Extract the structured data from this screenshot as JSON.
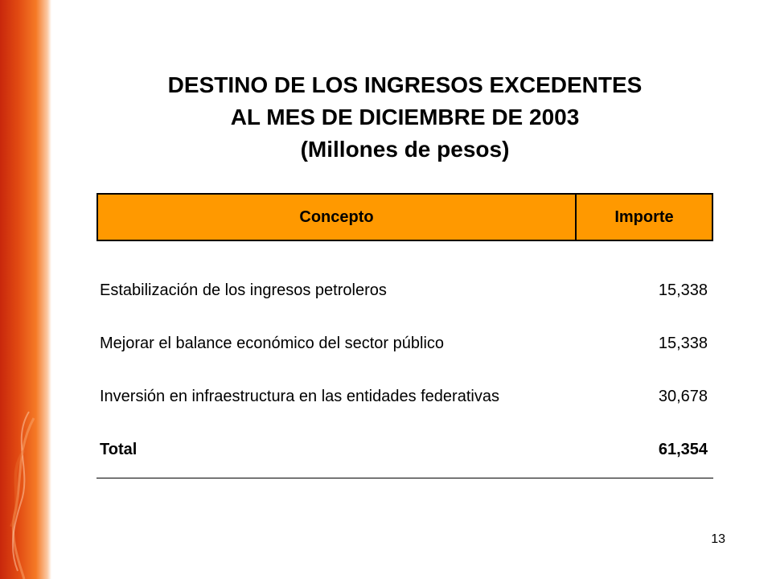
{
  "slide": {
    "title_lines": [
      "DESTINO DE LOS INGRESOS EXCEDENTES",
      "AL MES DE DICIEMBRE DE 2003",
      "(Millones de pesos)"
    ],
    "page_number": "13"
  },
  "table": {
    "header": {
      "concept": "Concepto",
      "amount": "Importe"
    },
    "rows": [
      {
        "concept": "Estabilización de los ingresos petroleros",
        "amount": "15,338"
      },
      {
        "concept": "Mejorar el balance económico del sector público",
        "amount": "15,338"
      },
      {
        "concept": "Inversión en infraestructura en las entidades federativas",
        "amount": "30,678"
      }
    ],
    "total": {
      "label": "Total",
      "amount": "61,354"
    }
  },
  "colors": {
    "header_fill": "#ff9900",
    "side_bar_dark": "#c8270c",
    "side_bar_light": "#f57a26"
  }
}
